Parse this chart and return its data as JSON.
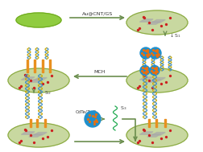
{
  "background_color": "#ffffff",
  "arrow_color": "#6b8e4e",
  "arrow_label_top": "Au@CNT/GS",
  "arrow_label_mid": "MCH",
  "arrow_label_bottom_left": "CdTe/ZnO",
  "electrode_disk_color_outer": "#c8d8a0",
  "electrode_disk_color_inner": "#b5cc80",
  "electrode_edge_color": "#8aaa40",
  "dna_helix_color1": "#ccaa00",
  "dna_helix_color2": "#3a8ecc",
  "dna_helix_green": "#20aa50",
  "pillar_color": "#e89020",
  "dot_red": "#cc2020",
  "nanoparticle_color": "#2090cc",
  "nanoparticle_dot_color": "#e87010",
  "graphene_color": "#999990",
  "gray_sheet_color": "#aaaaaa",
  "ellipse_plain_color": "#90cc40",
  "ellipse_plain_edge": "#70aa20",
  "arrow_text_color": "#333333",
  "label_color": "#444444",
  "crosslink_color": "#999999"
}
